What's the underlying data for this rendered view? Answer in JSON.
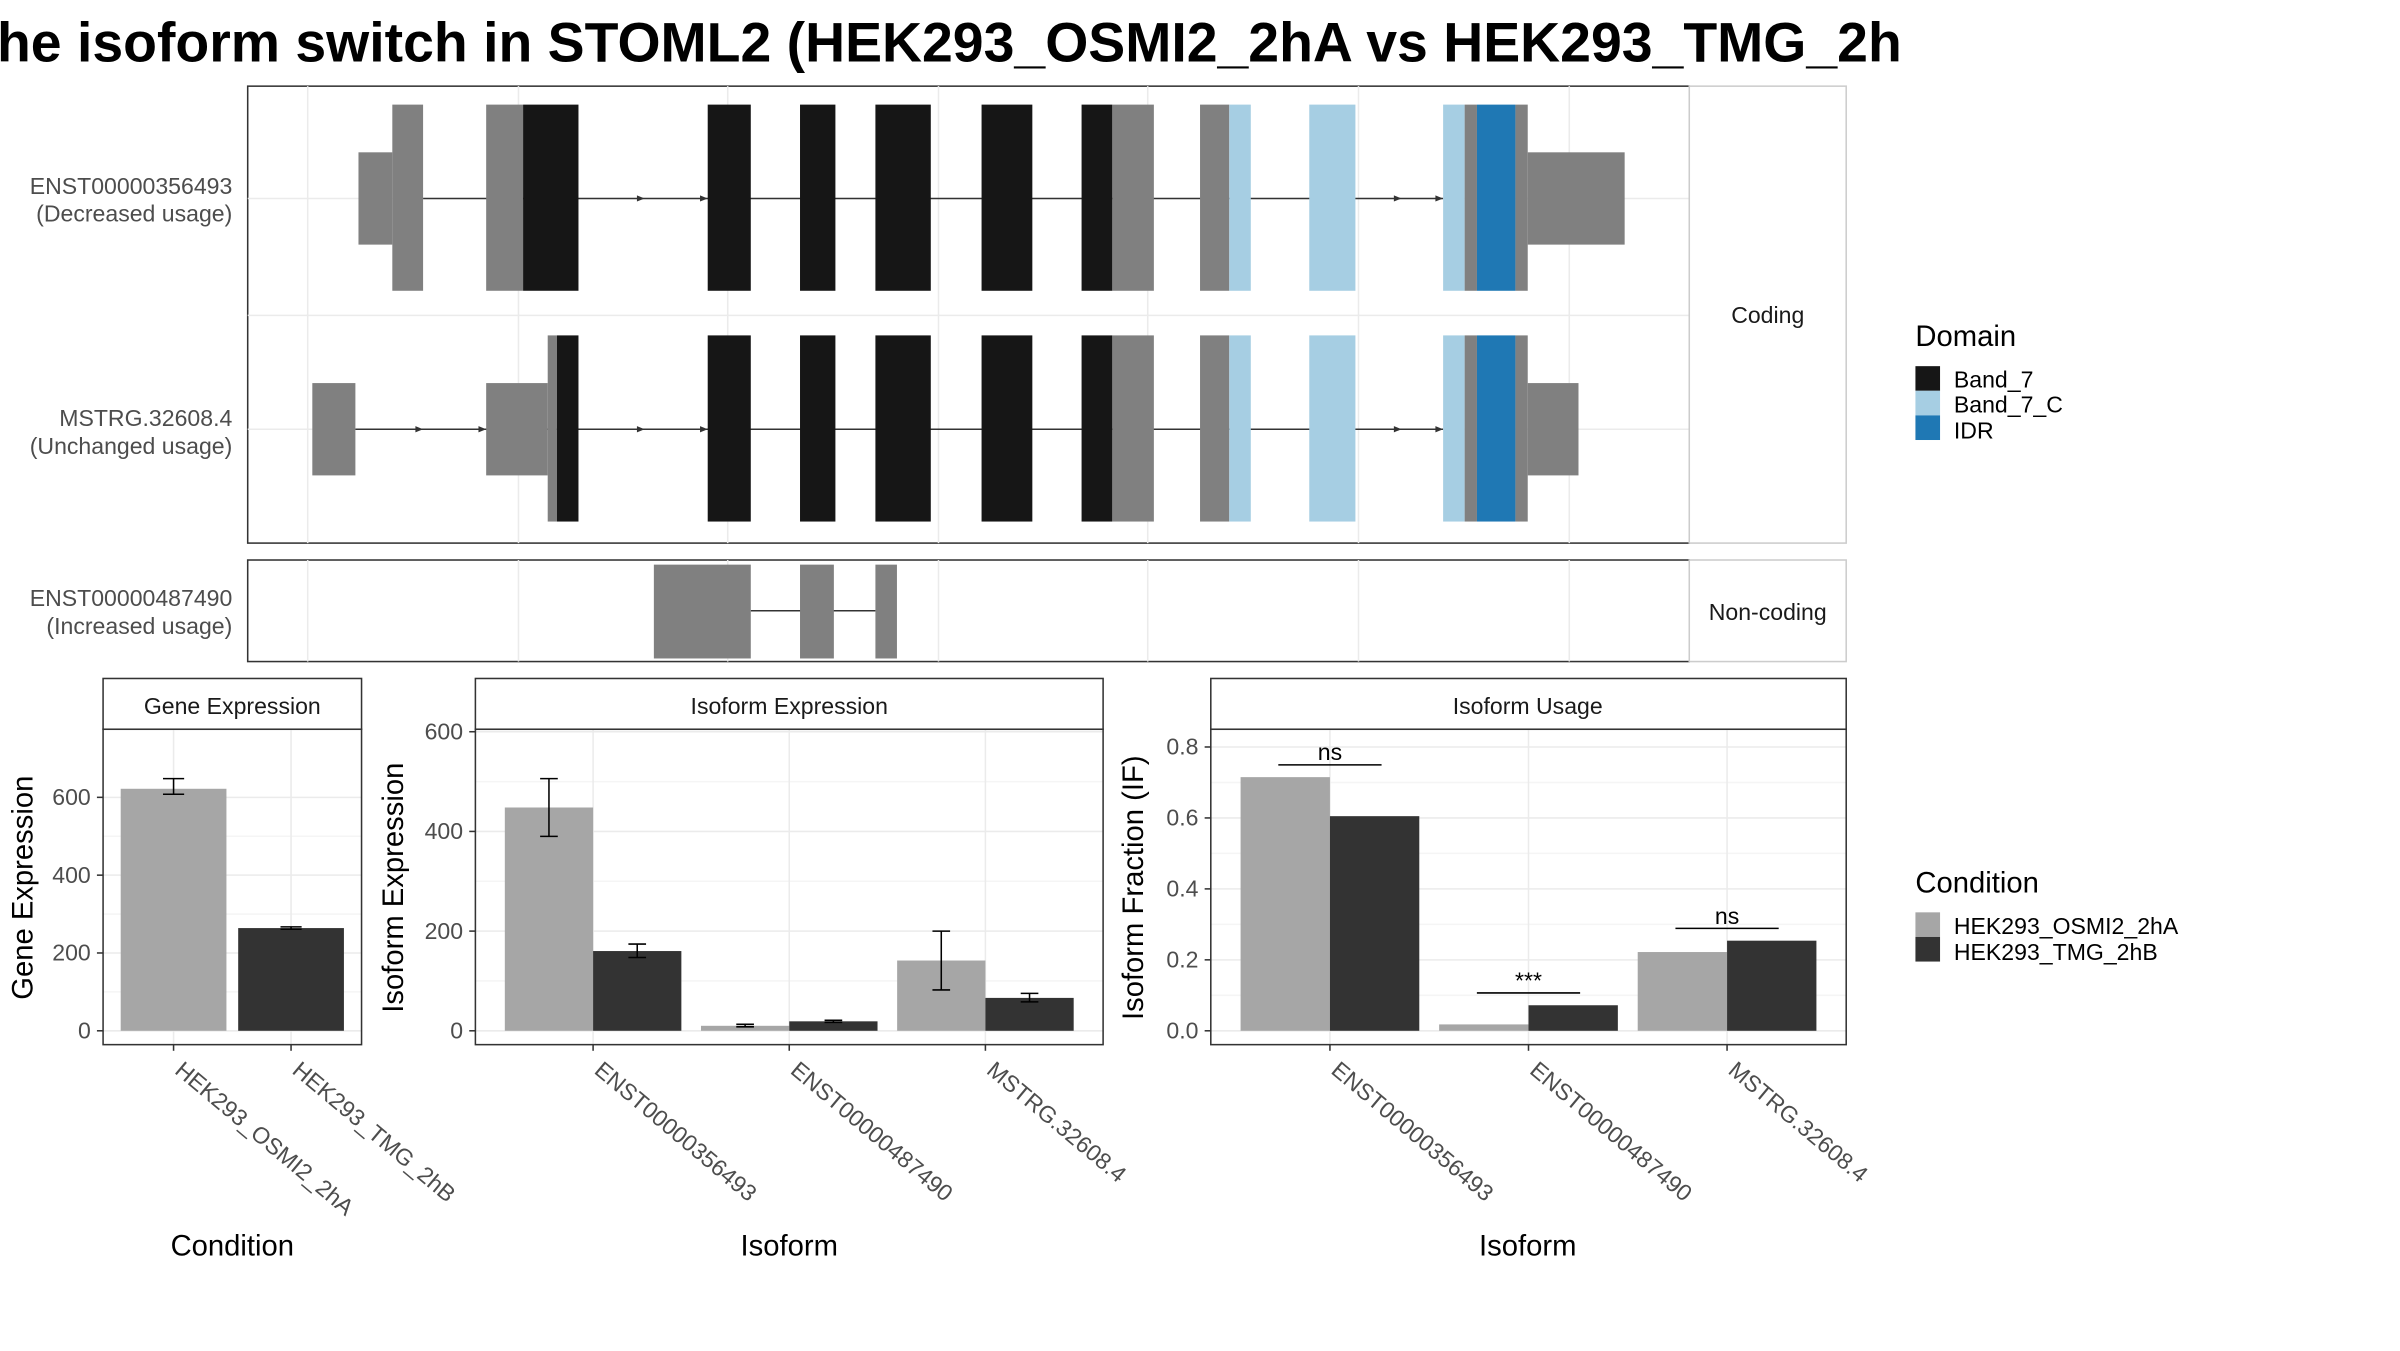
{
  "title": "he isoform switch in STOML2 (HEK293_OSMI2_2hA vs HEK293_TMG_2h",
  "colors": {
    "band7": "#161616",
    "band7c": "#a6cee3",
    "idr": "#1f78b4",
    "exon": "#808080",
    "cond_a": "#a6a6a6",
    "cond_b": "#333333"
  },
  "structure": {
    "coding_label": "Coding",
    "noncoding_label": "Non-coding",
    "transcripts": [
      {
        "id": "ENST00000356493",
        "usage": "(Decreased usage)"
      },
      {
        "id": "MSTRG.32608.4",
        "usage": "(Unchanged usage)"
      },
      {
        "id": "ENST00000487490",
        "usage": "(Increased usage)"
      }
    ]
  },
  "legend_domain": {
    "title": "Domain",
    "items": [
      {
        "label": "Band_7",
        "color": "#161616"
      },
      {
        "label": "Band_7_C",
        "color": "#a6cee3"
      },
      {
        "label": "IDR",
        "color": "#1f78b4"
      }
    ]
  },
  "legend_condition": {
    "title": "Condition",
    "items": [
      {
        "label": "HEK293_OSMI2_2hA",
        "color": "#a6a6a6"
      },
      {
        "label": "HEK293_TMG_2hB",
        "color": "#333333"
      }
    ]
  },
  "chart_data": [
    {
      "type": "bar",
      "title": "Gene Expression",
      "xlabel": "Condition",
      "ylabel": "Gene Expression",
      "categories": [
        "HEK293_OSMI2_2hA",
        "HEK293_TMG_2hB"
      ],
      "values": [
        622,
        264
      ],
      "error": [
        [
          608,
          648
        ],
        [
          261,
          267
        ]
      ],
      "ylim": [
        0,
        775
      ],
      "yticks": [
        0,
        200,
        400,
        600
      ]
    },
    {
      "type": "bar",
      "title": "Isoform Expression",
      "xlabel": "Isoform",
      "ylabel": "Isoform Expression",
      "categories": [
        "ENST00000356493",
        "ENST00000487490",
        "MSTRG.32608.4"
      ],
      "series": [
        {
          "name": "HEK293_OSMI2_2hA",
          "values": [
            448,
            10,
            141
          ],
          "error": [
            [
              390,
              506
            ],
            [
              8,
              13
            ],
            [
              82,
              200
            ]
          ]
        },
        {
          "name": "HEK293_TMG_2hB",
          "values": [
            160,
            19,
            66
          ],
          "error": [
            [
              147,
              174
            ],
            [
              17,
              21
            ],
            [
              58,
              75
            ]
          ]
        }
      ],
      "ylim": [
        0,
        605
      ],
      "yticks": [
        0,
        200,
        400,
        600
      ]
    },
    {
      "type": "bar",
      "title": "Isoform Usage",
      "xlabel": "Isoform",
      "ylabel": "Isoform Fraction (IF)",
      "categories": [
        "ENST00000356493",
        "ENST00000487490",
        "MSTRG.32608.4"
      ],
      "series": [
        {
          "name": "HEK293_OSMI2_2hA",
          "values": [
            0.715,
            0.018,
            0.222
          ]
        },
        {
          "name": "HEK293_TMG_2hB",
          "values": [
            0.605,
            0.072,
            0.254
          ]
        }
      ],
      "significance": [
        "ns",
        "***",
        "ns"
      ],
      "ylim": [
        0,
        0.85
      ],
      "yticks": [
        0.0,
        0.2,
        0.4,
        0.6,
        0.8
      ]
    }
  ]
}
